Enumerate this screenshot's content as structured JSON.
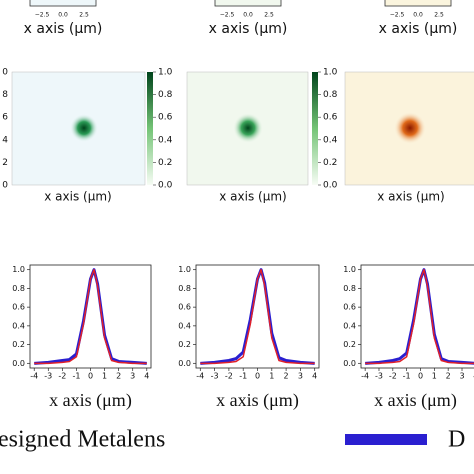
{
  "top_panels": [
    {
      "ticks": [
        "−2.5",
        "0.0",
        "2.5"
      ],
      "xlabel": "x axis (μm)"
    },
    {
      "ticks": [
        "−2.5",
        "0.0",
        "2.5"
      ],
      "xlabel": "x axis (μm)"
    },
    {
      "ticks": [
        "−2.5",
        "0.0",
        "2.5"
      ],
      "xlabel": "x axis (μm)"
    }
  ],
  "heatmaps": [
    {
      "ylabels": [
        "0",
        "8",
        "6",
        "4",
        "2",
        "0"
      ],
      "xlabel": "x axis (μm)",
      "colorbar_ticks": [
        {
          "value": 1,
          "label": "1.0"
        },
        {
          "value": 0.8,
          "label": "0.8"
        },
        {
          "value": 0.6,
          "label": "0.6"
        },
        {
          "value": 0.4,
          "label": "0.4"
        },
        {
          "value": 0.2,
          "label": "0.2"
        },
        {
          "value": 0,
          "label": "0.0"
        }
      ]
    },
    {
      "xlabel": "x axis (μm)",
      "colorbar_ticks": [
        {
          "value": 1,
          "label": "1.0"
        },
        {
          "value": 0.8,
          "label": "0.8"
        },
        {
          "value": 0.6,
          "label": "0.6"
        },
        {
          "value": 0.4,
          "label": "0.4"
        },
        {
          "value": 0.2,
          "label": "0.2"
        },
        {
          "value": 0,
          "label": "0.0"
        }
      ]
    },
    {
      "xlabel": "x axis (μm)"
    }
  ],
  "chart_data": [
    {
      "type": "line",
      "xlabel": "x axis (μm)",
      "x": [
        -4,
        -3,
        -2,
        -1.5,
        -1,
        -0.5,
        0,
        0.25,
        0.5,
        1,
        1.5,
        2,
        3,
        4
      ],
      "series": [
        {
          "name": "Designed Metalens",
          "color": "#2a1fd0",
          "values": [
            0.0,
            0.01,
            0.03,
            0.04,
            0.1,
            0.45,
            0.9,
            1.0,
            0.85,
            0.3,
            0.05,
            0.02,
            0.01,
            0.0
          ]
        },
        {
          "color": "#e0202a",
          "values": [
            0.0,
            0.0,
            0.01,
            0.02,
            0.07,
            0.42,
            0.9,
            1.0,
            0.83,
            0.27,
            0.03,
            0.01,
            0.0,
            0.0
          ]
        }
      ],
      "xlim": [
        -4.3,
        4.3
      ],
      "ylim": [
        -0.05,
        1.05
      ],
      "xticks": [
        -4,
        -3,
        -2,
        -1,
        0,
        1,
        2,
        3,
        4
      ],
      "yticks": [
        {
          "value": 1,
          "label": "1.0"
        },
        {
          "value": 0.8,
          "label": "0.8"
        },
        {
          "value": 0.6,
          "label": "0.6"
        },
        {
          "value": 0.4,
          "label": "0.4"
        },
        {
          "value": 0.2,
          "label": "0.2"
        },
        {
          "value": 0,
          "label": "0.0"
        }
      ]
    },
    {
      "type": "line",
      "xlabel": "x axis (μm)",
      "x": [
        -4,
        -3,
        -2,
        -1.5,
        -1,
        -0.5,
        0,
        0.25,
        0.5,
        1,
        1.5,
        2,
        3,
        4
      ],
      "series": [
        {
          "color": "#2a1fd0",
          "values": [
            0.0,
            0.01,
            0.03,
            0.05,
            0.12,
            0.47,
            0.9,
            1.0,
            0.86,
            0.32,
            0.06,
            0.03,
            0.01,
            0.0
          ]
        },
        {
          "color": "#e0202a",
          "values": [
            0.0,
            0.0,
            0.01,
            0.02,
            0.07,
            0.42,
            0.9,
            1.0,
            0.83,
            0.27,
            0.03,
            0.01,
            0.0,
            0.0
          ]
        }
      ],
      "xlim": [
        -4.3,
        4.3
      ],
      "ylim": [
        -0.05,
        1.05
      ],
      "xticks": [
        -4,
        -3,
        -2,
        -1,
        0,
        1,
        2,
        3,
        4
      ],
      "yticks": [
        {
          "value": 1,
          "label": "1.0"
        },
        {
          "value": 0.8,
          "label": "0.8"
        },
        {
          "value": 0.6,
          "label": "0.6"
        },
        {
          "value": 0.4,
          "label": "0.4"
        },
        {
          "value": 0.2,
          "label": "0.2"
        },
        {
          "value": 0,
          "label": "0.0"
        }
      ]
    },
    {
      "type": "line",
      "xlabel": "x axis (μm)",
      "x": [
        -4,
        -3,
        -2,
        -1.5,
        -1,
        -0.5,
        0,
        0.25,
        0.5,
        1,
        1.5,
        2,
        3,
        4
      ],
      "series": [
        {
          "color": "#2a1fd0",
          "values": [
            0.0,
            0.01,
            0.03,
            0.05,
            0.11,
            0.46,
            0.9,
            1.0,
            0.85,
            0.31,
            0.05,
            0.02,
            0.01,
            0.0
          ]
        },
        {
          "color": "#e0202a",
          "values": [
            0.0,
            0.0,
            0.01,
            0.02,
            0.07,
            0.42,
            0.9,
            1.0,
            0.83,
            0.27,
            0.03,
            0.01,
            0.0,
            0.0
          ]
        }
      ],
      "xlim": [
        -4.3,
        4.3
      ],
      "ylim": [
        -0.05,
        1.05
      ],
      "xticks": [
        -4,
        -3,
        -2,
        -1,
        0,
        1,
        2,
        3,
        4
      ],
      "yticks": [
        {
          "value": 1,
          "label": "1.0"
        },
        {
          "value": 0.8,
          "label": "0.8"
        },
        {
          "value": 0.6,
          "label": "0.6"
        },
        {
          "value": 0.4,
          "label": "0.4"
        },
        {
          "value": 0.2,
          "label": "0.2"
        },
        {
          "value": 0,
          "label": "0.0"
        }
      ]
    }
  ],
  "legend": {
    "left": "esigned Metalens",
    "right": "D"
  }
}
